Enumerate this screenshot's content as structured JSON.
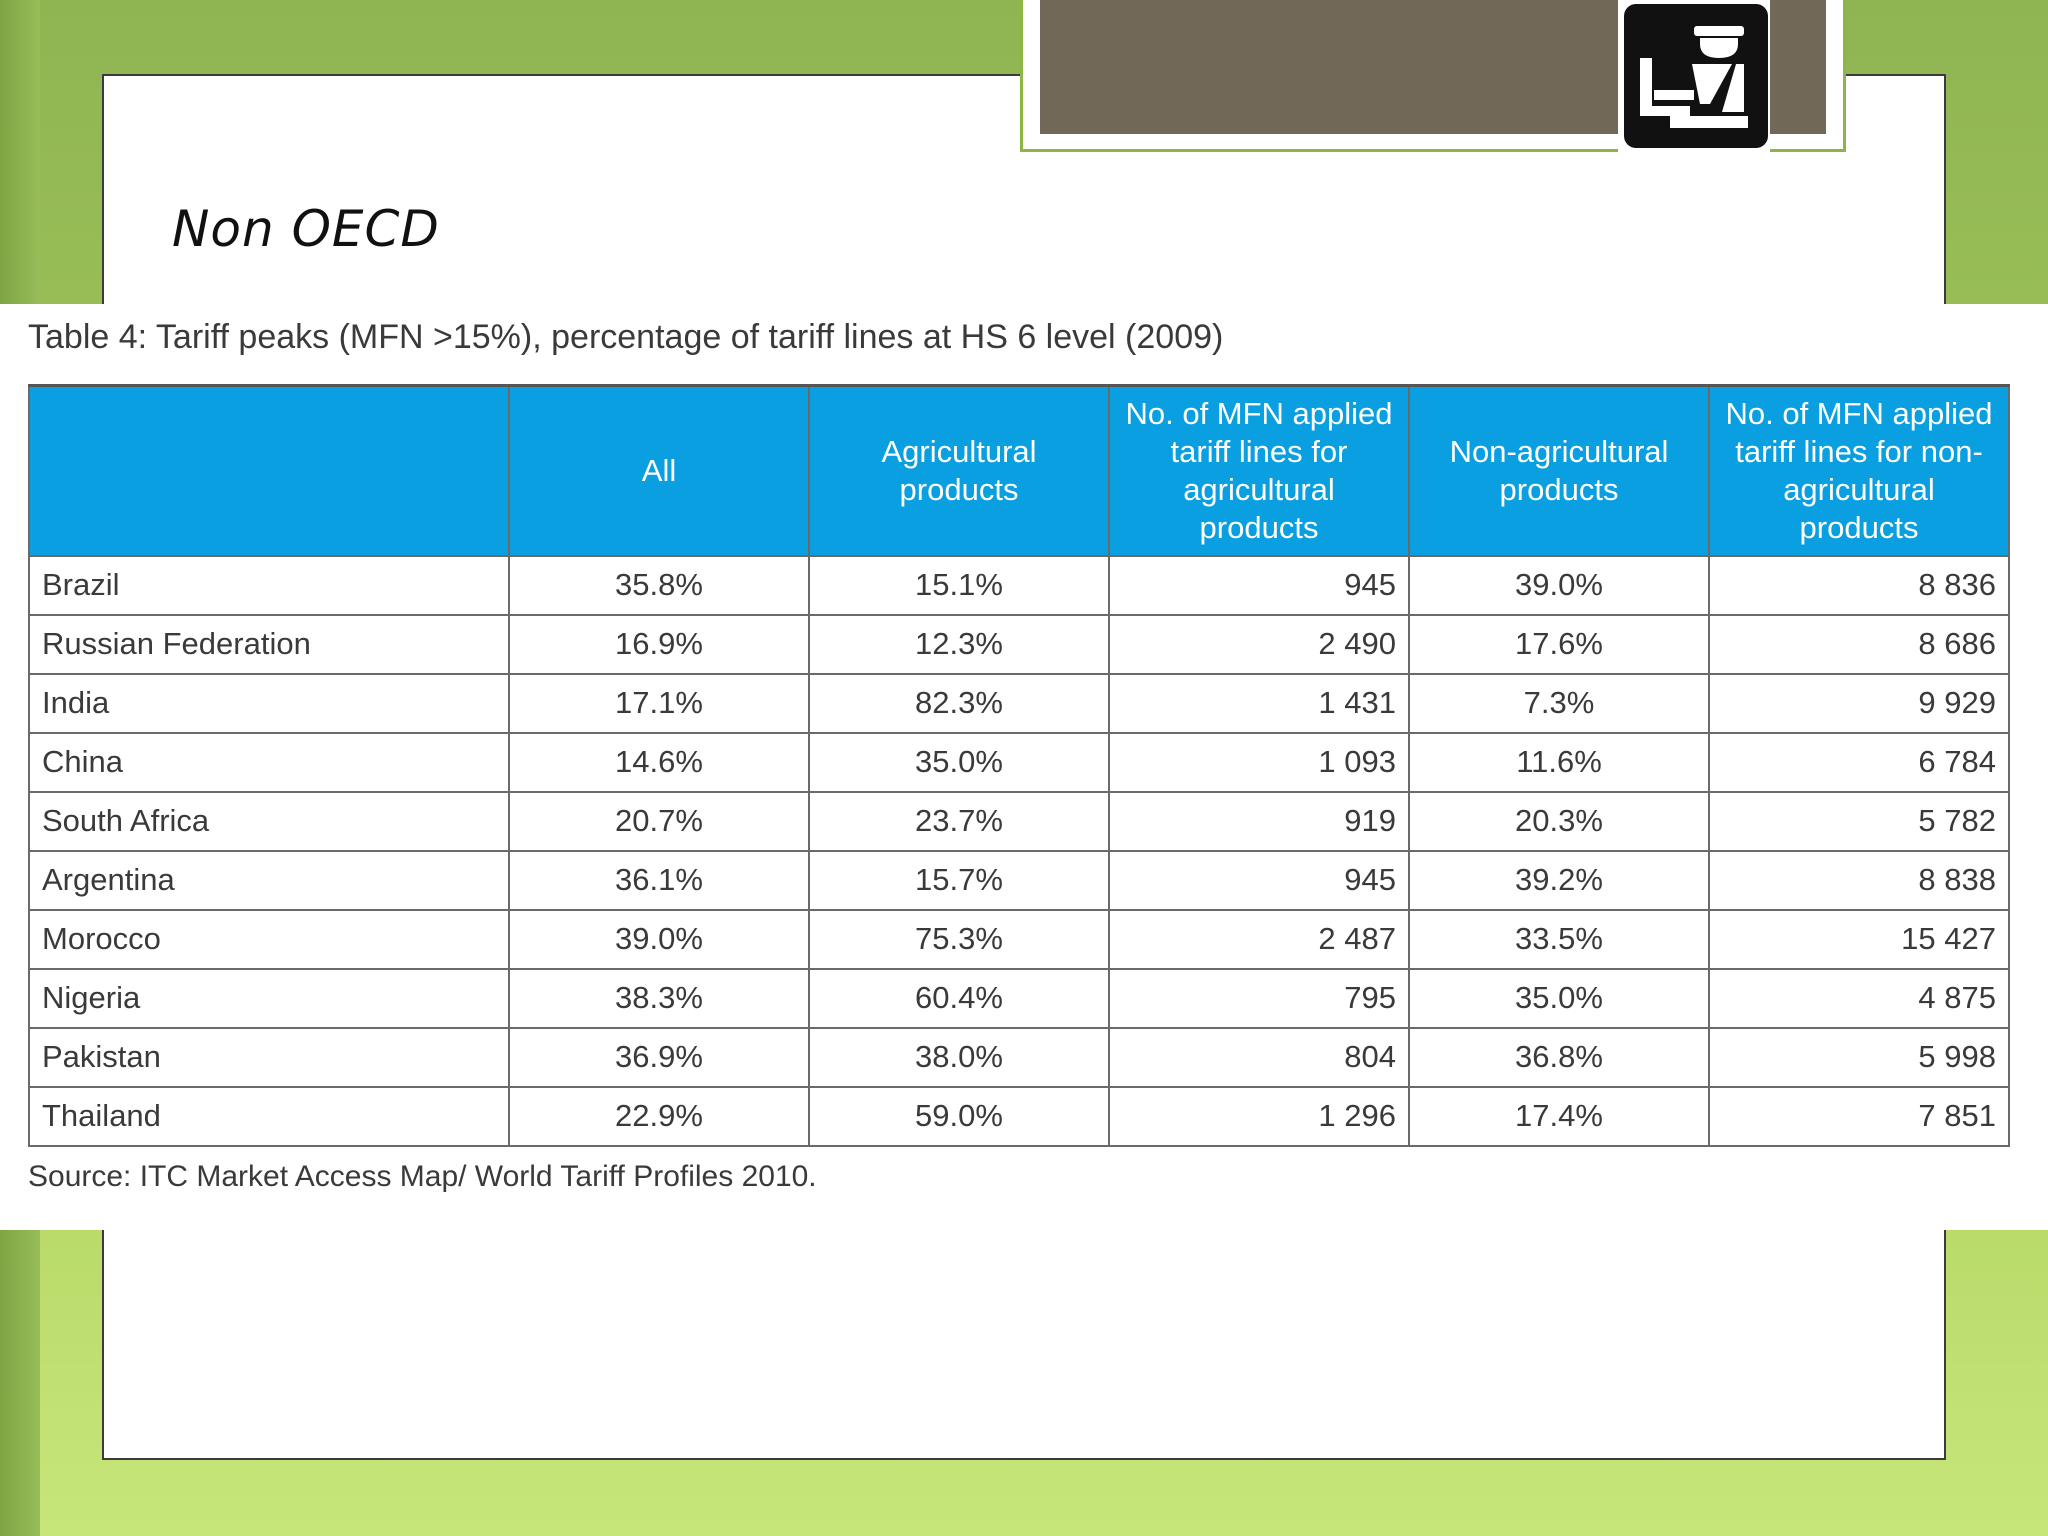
{
  "slide": {
    "title": "Non OECD"
  },
  "table": {
    "caption": "Table 4: Tariff peaks (MFN >15%), percentage of tariff lines at HS 6 level (2009)",
    "headers": [
      "",
      "All",
      "Agricultural products",
      "No. of MFN applied tariff lines for agricultural products",
      "Non-agricultural products",
      "No. of MFN applied tariff lines for non-agricultural products"
    ],
    "rows": [
      [
        "Brazil",
        "35.8%",
        "15.1%",
        "945",
        "39.0%",
        "8 836"
      ],
      [
        "Russian Federation",
        "16.9%",
        "12.3%",
        "2 490",
        "17.6%",
        "8 686"
      ],
      [
        "India",
        "17.1%",
        "82.3%",
        "1 431",
        "7.3%",
        "9 929"
      ],
      [
        "China",
        "14.6%",
        "35.0%",
        "1 093",
        "11.6%",
        "6 784"
      ],
      [
        "South Africa",
        "20.7%",
        "23.7%",
        "919",
        "20.3%",
        "5 782"
      ],
      [
        "Argentina",
        "36.1%",
        "15.7%",
        "945",
        "39.2%",
        "8 838"
      ],
      [
        "Morocco",
        "39.0%",
        "75.3%",
        "2 487",
        "33.5%",
        "15 427"
      ],
      [
        "Nigeria",
        "38.3%",
        "60.4%",
        "795",
        "35.0%",
        "4 875"
      ],
      [
        "Pakistan",
        "36.9%",
        "38.0%",
        "804",
        "36.8%",
        "5 998"
      ],
      [
        "Thailand",
        "22.9%",
        "59.0%",
        "1 296",
        "17.4%",
        "7 851"
      ]
    ],
    "source": "Source: ITC Market Access Map/ World Tariff Profiles 2010."
  },
  "colors": {
    "header_blue": "#0a9fe0",
    "background_green": "#a3c85c",
    "photo_brown": "#726858"
  },
  "icons": {
    "header_icon": "customs-officer-icon"
  }
}
